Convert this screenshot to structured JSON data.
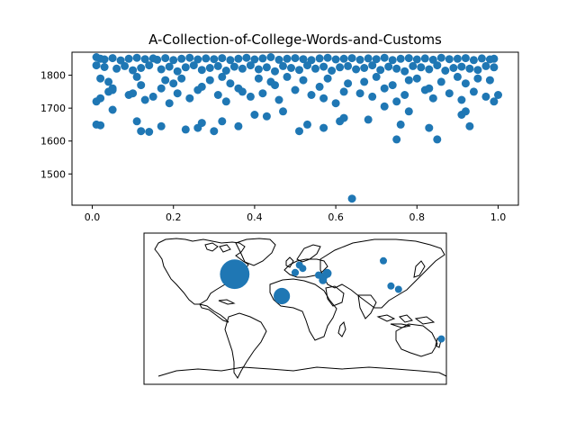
{
  "chart_data": [
    {
      "type": "scatter",
      "title": "A-Collection-of-College-Words-and-Customs",
      "xlabel": "",
      "ylabel": "",
      "xlim": [
        -0.05,
        1.05
      ],
      "ylim": [
        1405,
        1870
      ],
      "xticks": [
        0.0,
        0.2,
        0.4,
        0.6,
        0.8,
        1.0
      ],
      "xtick_labels": [
        "0.0",
        "0.2",
        "0.4",
        "0.6",
        "0.8",
        "1.0"
      ],
      "yticks": [
        1500,
        1600,
        1700,
        1800
      ],
      "ytick_labels": [
        "1500",
        "1600",
        "1700",
        "1800"
      ],
      "grid": false,
      "color": "#1f77b4",
      "points_note_excluded": false,
      "x": [
        0.01,
        0.02,
        0.03,
        0.05,
        0.07,
        0.09,
        0.11,
        0.13,
        0.15,
        0.16,
        0.18,
        0.2,
        0.22,
        0.24,
        0.26,
        0.28,
        0.3,
        0.32,
        0.34,
        0.36,
        0.38,
        0.4,
        0.42,
        0.44,
        0.46,
        0.48,
        0.5,
        0.52,
        0.54,
        0.56,
        0.58,
        0.6,
        0.62,
        0.64,
        0.66,
        0.68,
        0.7,
        0.72,
        0.74,
        0.76,
        0.78,
        0.8,
        0.82,
        0.84,
        0.86,
        0.88,
        0.9,
        0.92,
        0.94,
        0.96,
        0.98,
        0.99,
        0.01,
        0.03,
        0.06,
        0.08,
        0.1,
        0.12,
        0.14,
        0.17,
        0.19,
        0.21,
        0.23,
        0.25,
        0.27,
        0.29,
        0.31,
        0.33,
        0.35,
        0.37,
        0.39,
        0.41,
        0.43,
        0.45,
        0.47,
        0.49,
        0.51,
        0.53,
        0.55,
        0.57,
        0.59,
        0.61,
        0.63,
        0.65,
        0.67,
        0.69,
        0.71,
        0.73,
        0.75,
        0.77,
        0.79,
        0.81,
        0.83,
        0.85,
        0.87,
        0.89,
        0.91,
        0.93,
        0.95,
        0.97,
        0.99,
        0.02,
        0.04,
        0.05,
        0.11,
        0.12,
        0.18,
        0.2,
        0.22,
        0.27,
        0.29,
        0.32,
        0.34,
        0.36,
        0.41,
        0.44,
        0.45,
        0.48,
        0.52,
        0.56,
        0.58,
        0.63,
        0.67,
        0.7,
        0.74,
        0.78,
        0.8,
        0.83,
        0.86,
        0.9,
        0.92,
        0.95,
        0.98,
        0.01,
        0.02,
        0.04,
        0.05,
        0.09,
        0.1,
        0.13,
        0.15,
        0.17,
        0.19,
        0.21,
        0.24,
        0.26,
        0.31,
        0.33,
        0.37,
        0.39,
        0.42,
        0.46,
        0.5,
        0.54,
        0.57,
        0.6,
        0.62,
        0.66,
        0.69,
        0.72,
        0.75,
        0.77,
        0.82,
        0.84,
        0.88,
        0.91,
        0.94,
        0.97,
        1.0,
        0.01,
        0.02,
        0.05,
        0.11,
        0.12,
        0.14,
        0.17,
        0.23,
        0.26,
        0.27,
        0.3,
        0.32,
        0.36,
        0.4,
        0.43,
        0.47,
        0.51,
        0.53,
        0.57,
        0.61,
        0.62,
        0.68,
        0.72,
        0.75,
        0.76,
        0.78,
        0.83,
        0.85,
        0.91,
        0.92,
        0.93,
        0.99,
        0.64
      ],
      "y": [
        1855,
        1850,
        1848,
        1852,
        1845,
        1850,
        1853,
        1849,
        1851,
        1847,
        1852,
        1846,
        1850,
        1853,
        1848,
        1851,
        1849,
        1852,
        1846,
        1850,
        1853,
        1848,
        1851,
        1855,
        1847,
        1850,
        1852,
        1849,
        1846,
        1851,
        1853,
        1848,
        1850,
        1852,
        1847,
        1851,
        1849,
        1853,
        1846,
        1850,
        1852,
        1848,
        1851,
        1847,
        1853,
        1849,
        1850,
        1852,
        1846,
        1851,
        1848,
        1850,
        1830,
        1825,
        1820,
        1828,
        1815,
        1822,
        1830,
        1818,
        1826,
        1812,
        1824,
        1830,
        1816,
        1822,
        1828,
        1814,
        1826,
        1820,
        1830,
        1818,
        1824,
        1812,
        1828,
        1822,
        1816,
        1830,
        1820,
        1826,
        1814,
        1824,
        1828,
        1818,
        1822,
        1830,
        1816,
        1826,
        1820,
        1812,
        1828,
        1824,
        1818,
        1830,
        1814,
        1822,
        1826,
        1820,
        1816,
        1828,
        1824,
        1790,
        1780,
        1760,
        1795,
        1770,
        1785,
        1775,
        1790,
        1765,
        1785,
        1795,
        1775,
        1760,
        1790,
        1780,
        1770,
        1795,
        1785,
        1765,
        1790,
        1775,
        1780,
        1795,
        1770,
        1785,
        1790,
        1760,
        1780,
        1795,
        1775,
        1790,
        1785,
        1720,
        1730,
        1750,
        1755,
        1740,
        1745,
        1725,
        1735,
        1760,
        1715,
        1745,
        1730,
        1755,
        1740,
        1720,
        1750,
        1735,
        1745,
        1725,
        1755,
        1740,
        1730,
        1715,
        1750,
        1745,
        1735,
        1760,
        1720,
        1740,
        1755,
        1730,
        1745,
        1725,
        1750,
        1735,
        1740,
        1650,
        1648,
        1695,
        1660,
        1630,
        1628,
        1645,
        1635,
        1640,
        1655,
        1630,
        1660,
        1645,
        1680,
        1675,
        1690,
        1630,
        1650,
        1640,
        1660,
        1670,
        1665,
        1705,
        1605,
        1650,
        1690,
        1640,
        1605,
        1680,
        1690,
        1645,
        1720,
        1425
      ]
    },
    {
      "type": "scatter",
      "map": "world",
      "xlim": [
        -180,
        180
      ],
      "ylim": [
        -90,
        90
      ],
      "color": "#1f77b4",
      "lon": [
        -72,
        -16,
        5,
        9,
        0,
        35,
        33,
        28,
        38,
        105,
        114,
        123,
        174
      ],
      "lat": [
        41,
        15,
        52,
        48,
        43,
        39,
        34,
        40,
        42,
        57,
        27,
        23,
        -36
      ],
      "size": [
        36,
        20,
        6,
        5,
        9,
        9,
        10,
        9,
        11,
        6,
        7,
        6,
        6
      ]
    }
  ]
}
